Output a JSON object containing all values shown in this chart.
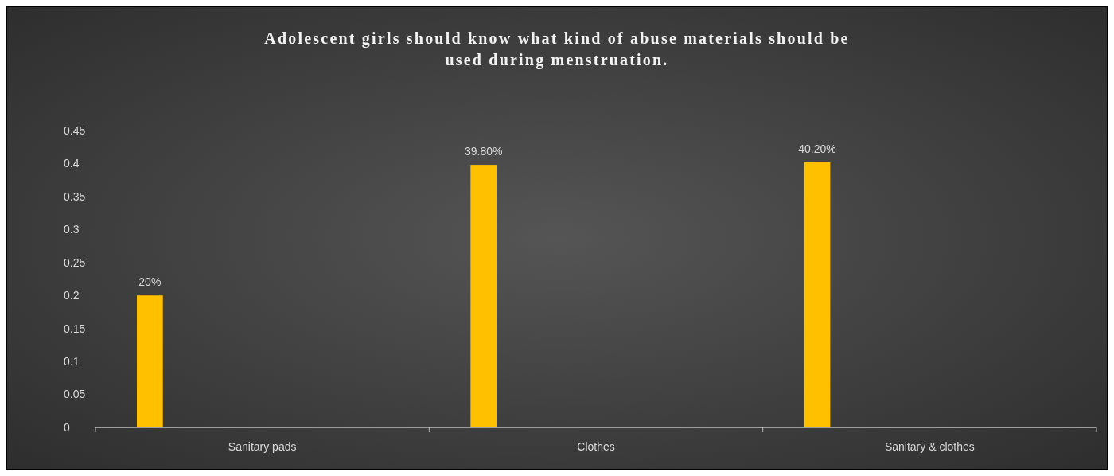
{
  "chart_data": {
    "type": "bar",
    "title": "Adolescent girls should know what kind of abuse materials should be used during menstruation.",
    "categories": [
      "Sanitary pads",
      "Clothes",
      "Sanitary & clothes"
    ],
    "values": [
      0.2,
      0.398,
      0.402
    ],
    "color": "#ffc000",
    "value_labels": [
      "20%",
      "39.80%",
      "40.20%"
    ],
    "ylim": [
      0,
      0.45
    ],
    "yticks": [
      0,
      0.05,
      0.1,
      0.15,
      0.2,
      0.25,
      0.3,
      0.35,
      0.4,
      0.45
    ],
    "grid": false
  }
}
